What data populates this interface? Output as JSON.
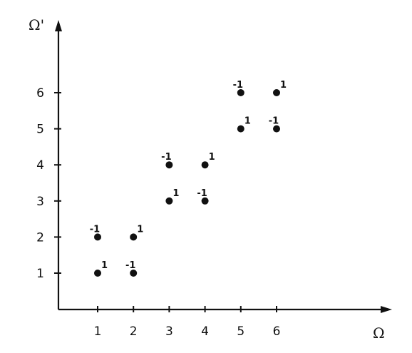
{
  "chart_data": {
    "type": "scatter",
    "xlabel": "Ω",
    "ylabel": "Ω'",
    "xlim": [
      0,
      7
    ],
    "ylim": [
      0,
      7
    ],
    "xticks": [
      1,
      2,
      3,
      4,
      5,
      6
    ],
    "yticks": [
      1,
      2,
      3,
      4,
      5,
      6
    ],
    "xtick_labels": [
      "1",
      "2",
      "3",
      "4",
      "5",
      "6"
    ],
    "ytick_labels": [
      "1",
      "2",
      "3",
      "4",
      "5",
      "6"
    ],
    "grid": false,
    "points": [
      {
        "x": 1,
        "y": 1,
        "label": "1"
      },
      {
        "x": 2,
        "y": 1,
        "label": "-1"
      },
      {
        "x": 1,
        "y": 2,
        "label": "-1"
      },
      {
        "x": 2,
        "y": 2,
        "label": "1"
      },
      {
        "x": 3,
        "y": 3,
        "label": "1"
      },
      {
        "x": 4,
        "y": 3,
        "label": "-1"
      },
      {
        "x": 3,
        "y": 4,
        "label": "-1"
      },
      {
        "x": 4,
        "y": 4,
        "label": "1"
      },
      {
        "x": 5,
        "y": 5,
        "label": "1"
      },
      {
        "x": 6,
        "y": 5,
        "label": "-1"
      },
      {
        "x": 5,
        "y": 6,
        "label": "-1"
      },
      {
        "x": 6,
        "y": 6,
        "label": "1"
      }
    ]
  }
}
